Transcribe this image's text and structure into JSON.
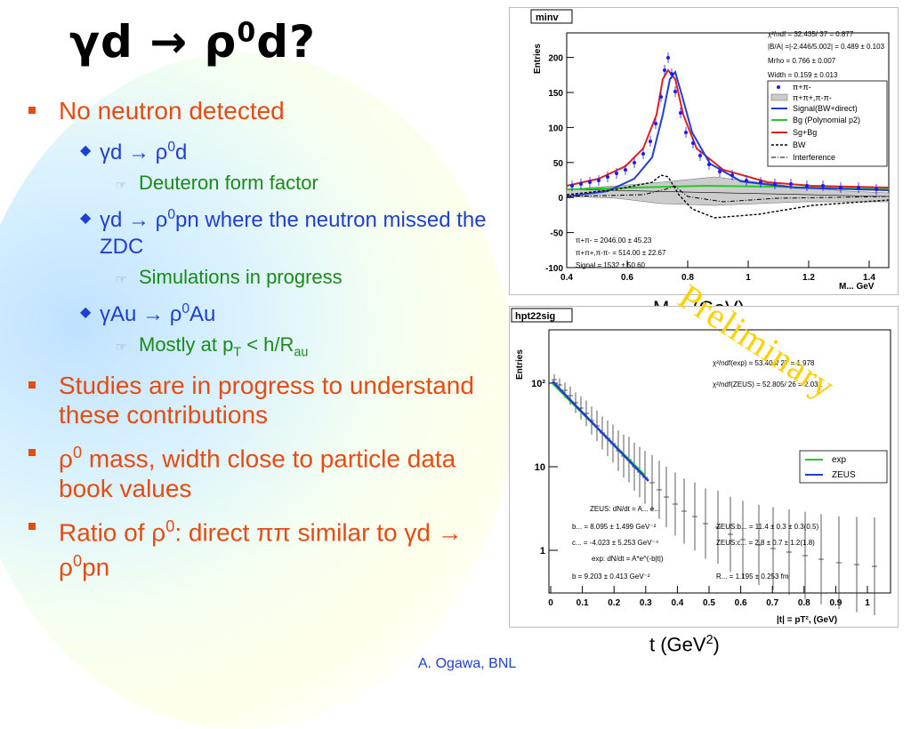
{
  "title": {
    "main": "γd → ρ",
    "sup": "0",
    "rest": "d?"
  },
  "bullets": {
    "b1": "No neutron detected",
    "b1a": {
      "pre": "γd → ρ",
      "sup": "0",
      "post": "d"
    },
    "b1a_i": "Deuteron form factor",
    "b1b": {
      "pre": "γd → ρ",
      "sup": "0",
      "post": "pn where the neutron missed the ZDC"
    },
    "b1b_i": "Simulations in progress",
    "b1c": {
      "pre": "γAu → ρ",
      "sup": "0",
      "post": "Au"
    },
    "b1c_i": {
      "pre": "Mostly at p",
      "sub1": "T",
      "mid": " < h/R",
      "sub2": "au"
    },
    "b2": "Studies are in progress to understand these contributions",
    "b3": {
      "pre": "ρ",
      "sup": "0",
      "post": " mass, width close to particle data book values"
    },
    "b4": {
      "pre": "Ratio of ρ",
      "sup": "0",
      "mid": ": direct ππ similar to γd → ρ",
      "sup2": "0",
      "post": "pn"
    }
  },
  "plot1": {
    "name": "minv",
    "ylabel": "Entries",
    "xlabel": "M... GeV",
    "xticks": [
      "0.4",
      "0.6",
      "0.8",
      "1",
      "1.2",
      "1.4"
    ],
    "yticks": [
      "-100",
      "-50",
      "0",
      "50",
      "100",
      "150",
      "200"
    ],
    "fit_text": [
      "χ²/ndf = 32.435/ 37 = 0.877",
      "|B/A| =|-2.446/5.002| = 0.489 ± 0.103",
      "Mrho = 0.766 ± 0.007",
      "Width = 0.159 ± 0.013"
    ],
    "legend": [
      "π+π-",
      "π+π+,π-π-",
      "Signal(BW+direct)",
      "Bg (Polynomial p2)",
      "Sg+Bg",
      "BW",
      "Interference"
    ],
    "counts": [
      "π+π- = 2046.00 ± 45.23",
      "π+π+,π-π- = 514.00 ± 22.67",
      "Signal = 1532 ± 50.60"
    ],
    "caption": {
      "pre": "M",
      "sub": "ππ",
      "post": " (GeV)"
    },
    "colors": {
      "signal": "#1f3fd0",
      "bg": "#22cc22",
      "sgbg": "#e02020",
      "data": "#1a1aff"
    }
  },
  "plot2": {
    "name": "hpt22sig",
    "ylabel": "Entries",
    "xlabel": "|t| = pT², (GeV)",
    "xticks": [
      "0",
      "0.1",
      "0.2",
      "0.3",
      "0.4",
      "0.5",
      "0.6",
      "0.7",
      "0.8",
      "0.9",
      "1"
    ],
    "yticks": [
      "10²",
      "10",
      "1"
    ],
    "fit_text": [
      "χ²/ndf(exp) = 53.404/ 27 = 1.978",
      "χ²/ndf(ZEUS) = 52.805/ 26 = 2.031"
    ],
    "legend": [
      "exp",
      "ZEUS"
    ],
    "params": [
      "ZEUS: dN/dt = A... e...",
      "b... = 8.095 ± 1.499 GeV⁻²",
      "c... = -4.023 ± 5.253 GeV⁻⁴",
      "exp: dN/dt = A*e^(-b|t|)",
      "b = 9.203 ± 0.413 GeV⁻²"
    ],
    "params_right": [
      "ZEUS:b... = 11.4 ± 0.3 ± 0.3(0.5)",
      "ZEUS:c... = 2.8 ± 0.7 ± 1.2(1.8)",
      "R... = 1.195 ± 0.253 fm"
    ],
    "caption": {
      "pre": "t (GeV",
      "sup": "2",
      "post": ")"
    },
    "colors": {
      "exp": "#22cc22",
      "zeus": "#1f3fd0"
    }
  },
  "watermark": "Preliminary",
  "footer": "A. Ogawa, BNL"
}
